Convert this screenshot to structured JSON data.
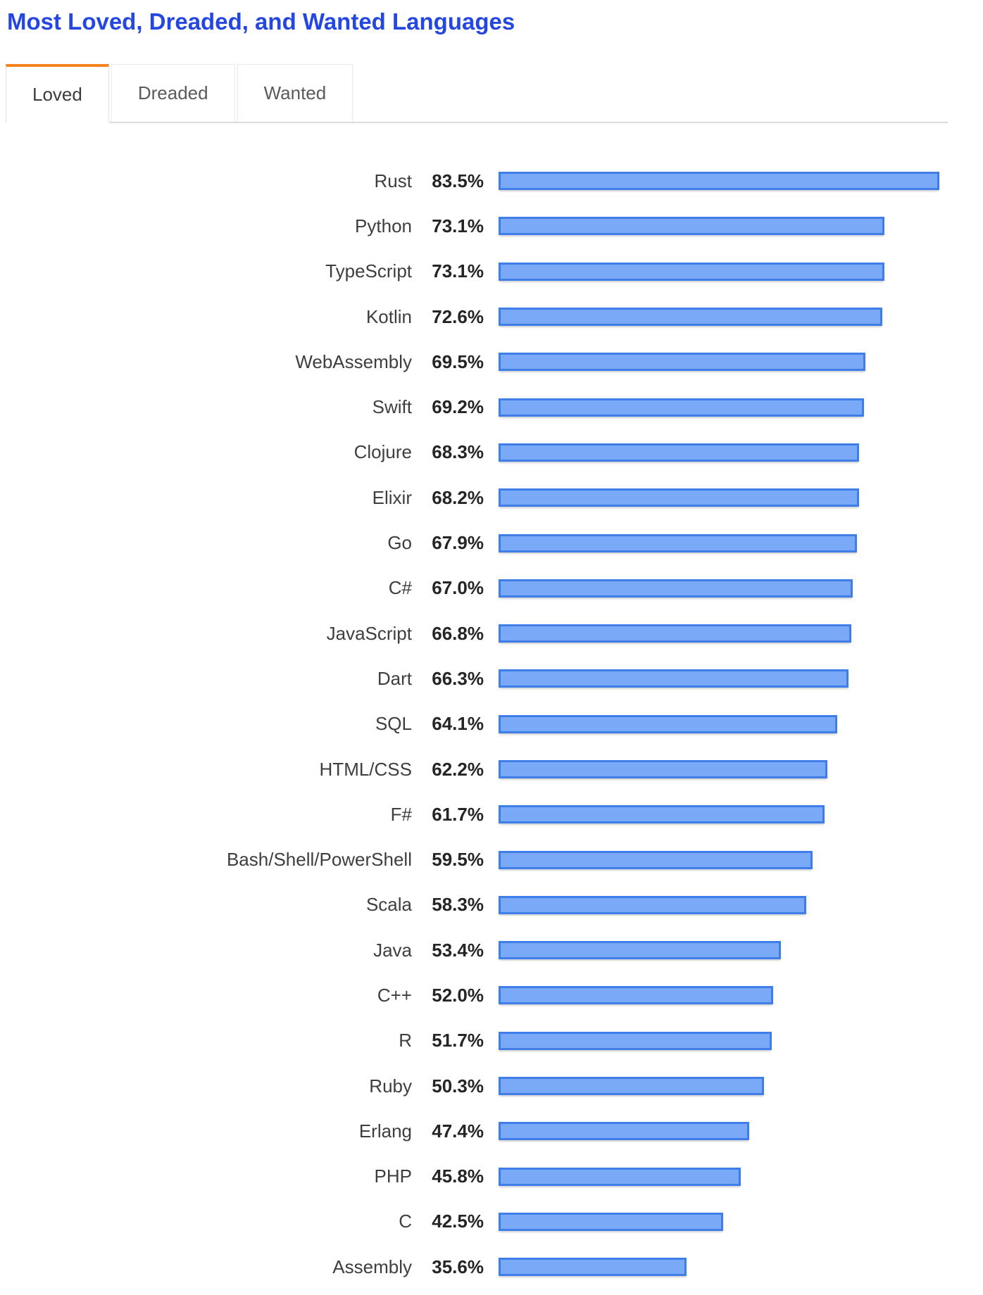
{
  "header": {
    "title": "Most Loved, Dreaded, and Wanted Languages"
  },
  "tabs": [
    {
      "label": "Loved",
      "active": true
    },
    {
      "label": "Dreaded",
      "active": false
    },
    {
      "label": "Wanted",
      "active": false
    }
  ],
  "chart_data": {
    "type": "bar",
    "orientation": "horizontal",
    "shown_tab": "Loved",
    "categories": [
      "Rust",
      "Python",
      "TypeScript",
      "Kotlin",
      "WebAssembly",
      "Swift",
      "Clojure",
      "Elixir",
      "Go",
      "C#",
      "JavaScript",
      "Dart",
      "SQL",
      "HTML/CSS",
      "F#",
      "Bash/Shell/PowerShell",
      "Scala",
      "Java",
      "C++",
      "R",
      "Ruby",
      "Erlang",
      "PHP",
      "C",
      "Assembly"
    ],
    "values": [
      83.5,
      73.1,
      73.1,
      72.6,
      69.5,
      69.2,
      68.3,
      68.2,
      67.9,
      67.0,
      66.8,
      66.3,
      64.1,
      62.2,
      61.7,
      59.5,
      58.3,
      53.4,
      52.0,
      51.7,
      50.3,
      47.4,
      45.8,
      42.5,
      35.6
    ],
    "value_suffix": "%",
    "value_decimals": 1,
    "xlim": [
      0,
      100
    ],
    "grid": false,
    "legend": "none",
    "axis_ticks": "none",
    "bar_fill_color": "#7AA9F7",
    "bar_border_color": "#3F7DE8"
  },
  "colors": {
    "title_text": "#2447E1",
    "active_tab_accent": "#F5841F",
    "tab_divider": "#DBDBDB"
  }
}
